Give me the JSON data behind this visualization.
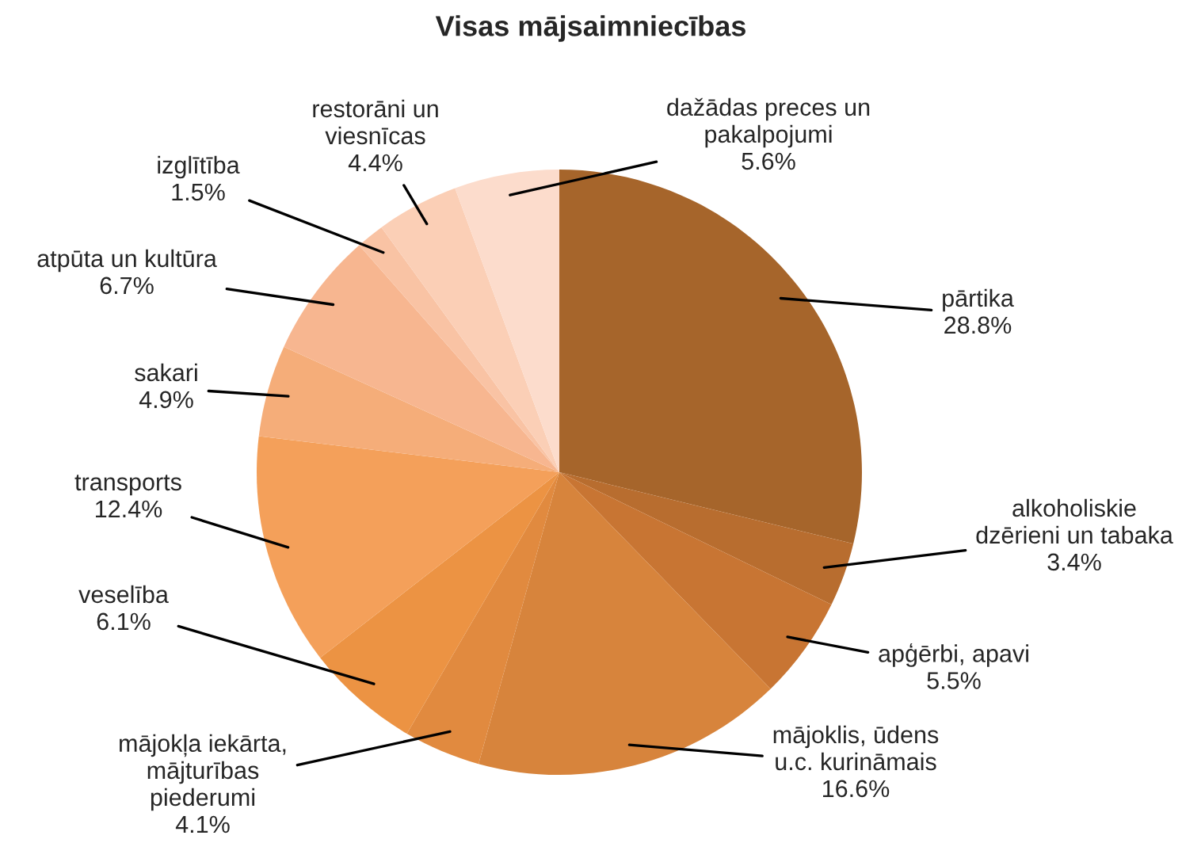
{
  "chart_data": {
    "type": "pie",
    "title": "Visas mājsaimniecības",
    "categories": [
      "pārtika",
      "alkoholiskie\ndzērieni un tabaka",
      "apģērbi, apavi",
      "mājoklis, ūdens\nu.c. kurināmais",
      "mājokļa iekārta,\nmājturības\npiederumi",
      "veselība",
      "transports",
      "sakari",
      "atpūta un kultūra",
      "izglītība",
      "restorāni un\nviesnīcas",
      "dažādas preces un\npakalpojumi"
    ],
    "values": [
      28.8,
      3.4,
      5.5,
      16.6,
      4.1,
      6.1,
      12.4,
      4.9,
      6.7,
      1.5,
      4.4,
      5.6
    ],
    "value_labels": [
      "28.8%",
      "3.4%",
      "5.5%",
      "16.6%",
      "4.1%",
      "6.1%",
      "12.4%",
      "4.9%",
      "6.7%",
      "1.5%",
      "4.4%",
      "5.6%"
    ],
    "colors": [
      "#a6652b",
      "#b86d2f",
      "#c87533",
      "#d7843c",
      "#e18a3f",
      "#ec9343",
      "#f4a05a",
      "#f5ad79",
      "#f7b690",
      "#f9c3a4",
      "#fbcfb6",
      "#fcdccc"
    ],
    "legend": false
  }
}
